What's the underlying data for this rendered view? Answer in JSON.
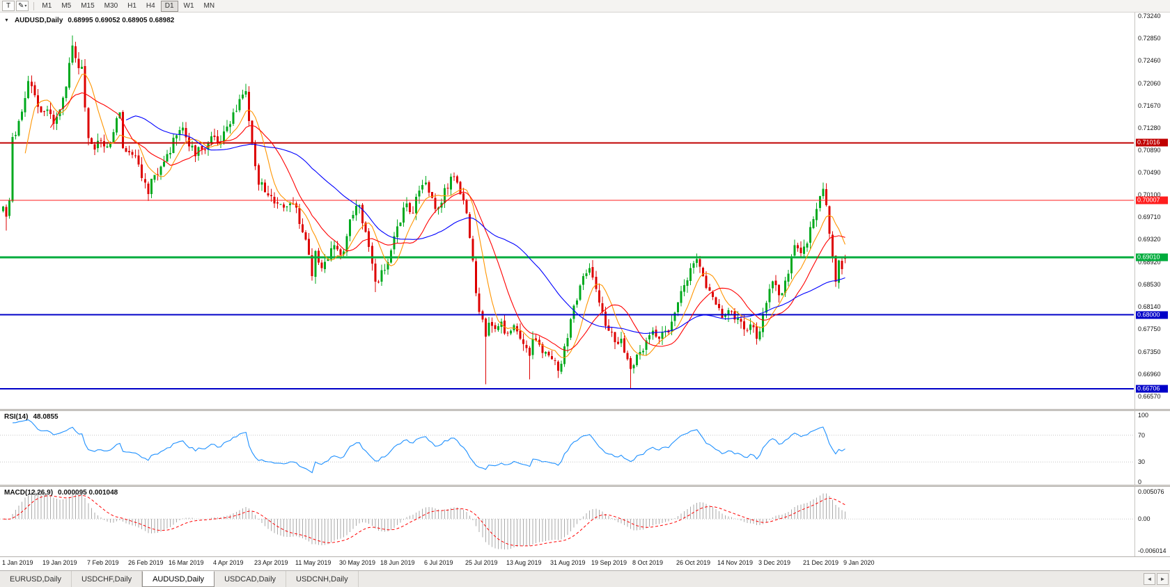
{
  "toolbar": {
    "buttons": [
      {
        "id": "pointer",
        "icon": "T"
      },
      {
        "id": "draw",
        "icon": "✎",
        "caret": "▾"
      }
    ],
    "timeframes": [
      "M1",
      "M5",
      "M15",
      "M30",
      "H1",
      "H4",
      "D1",
      "W1",
      "MN"
    ],
    "active_timeframe": "D1"
  },
  "chart": {
    "collapse_icon": "▼",
    "title": "AUDUSD,Daily",
    "ohlc_text": "0.68995 0.69052 0.68905 0.68982"
  },
  "chart_data": {
    "type": "candlestick",
    "symbol": "AUDUSD",
    "timeframe": "Daily",
    "bars": 268,
    "current": {
      "open": 0.68995,
      "high": 0.69052,
      "low": 0.68905,
      "close": 0.68982
    },
    "colors": {
      "up": "#00a91e",
      "down": "#dd0000",
      "rsi": "#1e90ff",
      "macd_histogram": "#a9a9a9",
      "macd_signal": "#ff0000"
    },
    "levels": [
      {
        "price": 0.71016,
        "label": "0.71016",
        "color": "#c00000",
        "thickness": 2
      },
      {
        "price": 0.70007,
        "label": "0.70007",
        "color": "#ff1e1e",
        "thickness": 1
      },
      {
        "price": 0.6901,
        "label": "0.69010",
        "color": "#00ac3c",
        "thickness": 3
      },
      {
        "price": 0.68,
        "label": "0.68000",
        "color": "#0000c8",
        "thickness": 2
      },
      {
        "price": 0.66706,
        "label": "0.66706",
        "color": "#0000c8",
        "thickness": 2
      }
    ],
    "y_axis": {
      "ticks": [
        "0.73240",
        "0.72850",
        "0.72460",
        "0.72060",
        "0.71670",
        "0.71280",
        "0.70890",
        "0.70490",
        "0.70100",
        "0.69710",
        "0.69320",
        "0.68920",
        "0.68530",
        "0.68140",
        "0.67750",
        "0.67350",
        "0.66960",
        "0.66570"
      ]
    },
    "x_axis": {
      "dates": [
        {
          "bar": 0,
          "label": "1 Jan 2019"
        },
        {
          "bar": 13,
          "label": "19 Jan 2019"
        },
        {
          "bar": 27,
          "label": "7 Feb 2019"
        },
        {
          "bar": 40,
          "label": "26 Feb 2019"
        },
        {
          "bar": 53,
          "label": "16 Mar 2019"
        },
        {
          "bar": 67,
          "label": "4 Apr 2019"
        },
        {
          "bar": 80,
          "label": "23 Apr 2019"
        },
        {
          "bar": 93,
          "label": "11 May 2019"
        },
        {
          "bar": 107,
          "label": "30 May 2019"
        },
        {
          "bar": 120,
          "label": "18 Jun 2019"
        },
        {
          "bar": 134,
          "label": "6 Jul 2019"
        },
        {
          "bar": 147,
          "label": "25 Jul 2019"
        },
        {
          "bar": 160,
          "label": "13 Aug 2019"
        },
        {
          "bar": 174,
          "label": "31 Aug 2019"
        },
        {
          "bar": 187,
          "label": "19 Sep 2019"
        },
        {
          "bar": 200,
          "label": "8 Oct 2019"
        },
        {
          "bar": 214,
          "label": "26 Oct 2019"
        },
        {
          "bar": 227,
          "label": "14 Nov 2019"
        },
        {
          "bar": 240,
          "label": "3 Dec 2019"
        },
        {
          "bar": 254,
          "label": "21 Dec 2019"
        },
        {
          "bar": 267,
          "label": "9 Jan 2020"
        }
      ]
    },
    "indicators": {
      "moving_averages": [
        {
          "period": 8,
          "color": "#ff9500"
        },
        {
          "period": 16,
          "color": "#ff0000"
        },
        {
          "period": 40,
          "color": "#0000ff"
        }
      ],
      "rsi": {
        "label": "RSI(14)",
        "value_text": "48.0855",
        "period": 14,
        "ticks": [
          100,
          70,
          30,
          0
        ],
        "levels": [
          70,
          30
        ]
      },
      "macd": {
        "label": "MACD(12,26,9)",
        "values_text": "0.000095 0.001048",
        "fast": 12,
        "slow": 26,
        "signal": 9,
        "range": {
          "top": 0.0055,
          "bottom": -0.0065
        },
        "ticks": [
          {
            "label": "0.005076",
            "value": 0.005076
          },
          {
            "label": "0.00",
            "value": 0.0
          },
          {
            "label": "-0.006014",
            "value": -0.006014
          }
        ]
      }
    },
    "close_anchors": [
      [
        0,
        0.699
      ],
      [
        1,
        0.6972
      ],
      [
        2,
        0.7
      ],
      [
        3,
        0.7112
      ],
      [
        5,
        0.714
      ],
      [
        8,
        0.721
      ],
      [
        10,
        0.7185
      ],
      [
        12,
        0.7155
      ],
      [
        14,
        0.716
      ],
      [
        16,
        0.7135
      ],
      [
        18,
        0.716
      ],
      [
        20,
        0.72
      ],
      [
        22,
        0.7272
      ],
      [
        23,
        0.725
      ],
      [
        25,
        0.7235
      ],
      [
        27,
        0.711
      ],
      [
        29,
        0.709
      ],
      [
        31,
        0.7105
      ],
      [
        33,
        0.7095
      ],
      [
        35,
        0.712
      ],
      [
        37,
        0.7155
      ],
      [
        38,
        0.7092
      ],
      [
        40,
        0.7085
      ],
      [
        42,
        0.7078
      ],
      [
        44,
        0.704
      ],
      [
        46,
        0.7012
      ],
      [
        48,
        0.7045
      ],
      [
        50,
        0.706
      ],
      [
        52,
        0.7082
      ],
      [
        55,
        0.7115
      ],
      [
        57,
        0.7128
      ],
      [
        59,
        0.7095
      ],
      [
        61,
        0.7078
      ],
      [
        63,
        0.709
      ],
      [
        65,
        0.71
      ],
      [
        67,
        0.7112
      ],
      [
        69,
        0.7102
      ],
      [
        71,
        0.713
      ],
      [
        73,
        0.7155
      ],
      [
        75,
        0.7178
      ],
      [
        77,
        0.7192
      ],
      [
        78,
        0.714
      ],
      [
        79,
        0.71
      ],
      [
        81,
        0.7028
      ],
      [
        83,
        0.7015
      ],
      [
        85,
        0.7008
      ],
      [
        87,
        0.6995
      ],
      [
        89,
        0.6988
      ],
      [
        91,
        0.6995
      ],
      [
        93,
        0.6988
      ],
      [
        95,
        0.6945
      ],
      [
        97,
        0.6905
      ],
      [
        98,
        0.6868
      ],
      [
        99,
        0.6912
      ],
      [
        101,
        0.6882
      ],
      [
        103,
        0.6898
      ],
      [
        105,
        0.6922
      ],
      [
        107,
        0.6905
      ],
      [
        109,
        0.6938
      ],
      [
        111,
        0.6975
      ],
      [
        113,
        0.6992
      ],
      [
        115,
        0.6945
      ],
      [
        117,
        0.689
      ],
      [
        118,
        0.6858
      ],
      [
        120,
        0.6878
      ],
      [
        122,
        0.6892
      ],
      [
        124,
        0.6938
      ],
      [
        126,
        0.6962
      ],
      [
        128,
        0.6995
      ],
      [
        130,
        0.6978
      ],
      [
        132,
        0.7018
      ],
      [
        134,
        0.7032
      ],
      [
        136,
        0.7005
      ],
      [
        138,
        0.6988
      ],
      [
        140,
        0.7022
      ],
      [
        142,
        0.7042
      ],
      [
        144,
        0.7032
      ],
      [
        146,
        0.7
      ],
      [
        147,
        0.6978
      ],
      [
        148,
        0.6935
      ],
      [
        149,
        0.6895
      ],
      [
        150,
        0.6838
      ],
      [
        151,
        0.6805
      ],
      [
        152,
        0.6792
      ],
      [
        153,
        0.6762
      ],
      [
        154,
        0.6786
      ],
      [
        156,
        0.6775
      ],
      [
        158,
        0.6788
      ],
      [
        160,
        0.6768
      ],
      [
        162,
        0.6782
      ],
      [
        164,
        0.6758
      ],
      [
        166,
        0.6742
      ],
      [
        167,
        0.6728
      ],
      [
        168,
        0.6758
      ],
      [
        170,
        0.6748
      ],
      [
        172,
        0.6735
      ],
      [
        174,
        0.6722
      ],
      [
        176,
        0.6702
      ],
      [
        178,
        0.6745
      ],
      [
        180,
        0.6792
      ],
      [
        182,
        0.6825
      ],
      [
        184,
        0.6868
      ],
      [
        186,
        0.6882
      ],
      [
        188,
        0.6845
      ],
      [
        190,
        0.6805
      ],
      [
        192,
        0.6772
      ],
      [
        194,
        0.6752
      ],
      [
        196,
        0.6758
      ],
      [
        198,
        0.6722
      ],
      [
        199,
        0.6705
      ],
      [
        200,
        0.6712
      ],
      [
        202,
        0.6735
      ],
      [
        204,
        0.6755
      ],
      [
        206,
        0.6772
      ],
      [
        208,
        0.6758
      ],
      [
        210,
        0.6772
      ],
      [
        212,
        0.6788
      ],
      [
        214,
        0.6822
      ],
      [
        216,
        0.6852
      ],
      [
        218,
        0.6882
      ],
      [
        220,
        0.6898
      ],
      [
        222,
        0.6868
      ],
      [
        224,
        0.6842
      ],
      [
        226,
        0.6818
      ],
      [
        228,
        0.6795
      ],
      [
        230,
        0.6808
      ],
      [
        232,
        0.6792
      ],
      [
        234,
        0.6788
      ],
      [
        236,
        0.6772
      ],
      [
        238,
        0.6778
      ],
      [
        239,
        0.6758
      ],
      [
        241,
        0.6802
      ],
      [
        243,
        0.6845
      ],
      [
        245,
        0.6852
      ],
      [
        247,
        0.6838
      ],
      [
        249,
        0.6872
      ],
      [
        251,
        0.6922
      ],
      [
        253,
        0.6908
      ],
      [
        255,
        0.6925
      ],
      [
        257,
        0.6968
      ],
      [
        259,
        0.7008
      ],
      [
        260,
        0.7021
      ],
      [
        261,
        0.6992
      ],
      [
        262,
        0.6942
      ],
      [
        263,
        0.6902
      ],
      [
        264,
        0.6858
      ],
      [
        265,
        0.6895
      ],
      [
        266,
        0.688
      ],
      [
        267,
        0.68982
      ]
    ],
    "wick_overrides": [
      {
        "bar": 1,
        "low": 0.6948
      },
      {
        "bar": 22,
        "high": 0.729
      },
      {
        "bar": 77,
        "high": 0.7205
      },
      {
        "bar": 98,
        "low": 0.686
      },
      {
        "bar": 118,
        "low": 0.684
      },
      {
        "bar": 142,
        "high": 0.7048
      },
      {
        "bar": 153,
        "low": 0.6678
      },
      {
        "bar": 167,
        "low": 0.6687
      },
      {
        "bar": 176,
        "low": 0.6689
      },
      {
        "bar": 199,
        "low": 0.66706
      },
      {
        "bar": 260,
        "high": 0.7032
      },
      {
        "bar": 264,
        "low": 0.6849
      }
    ]
  },
  "tabs": {
    "items": [
      "EURUSD,Daily",
      "USDCHF,Daily",
      "AUDUSD,Daily",
      "USDCAD,Daily",
      "USDCNH,Daily"
    ],
    "active_index": 2,
    "scroll_left_icon": "◄",
    "scroll_right_icon": "►"
  }
}
